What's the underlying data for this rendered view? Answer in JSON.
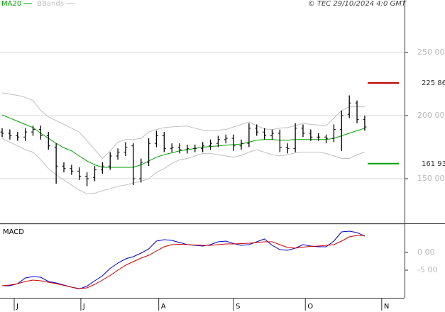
{
  "chart_data": [
    {
      "type": "ohlc",
      "source": "© TEC 29/10/2024 4:0 GMT",
      "xlim": [
        -0.28,
        52.16
      ],
      "ylim": [
        114.6,
        291.6
      ],
      "yticks": [
        {
          "value": 150,
          "label": "150 00"
        },
        {
          "value": 200,
          "label": "200 00"
        },
        {
          "value": 250,
          "label": "250 00"
        }
      ],
      "grid": true,
      "bar_color": "#000000",
      "ohlc": {
        "open": [
          187,
          186,
          184,
          183,
          187,
          189,
          184,
          175,
          160,
          158,
          156,
          152,
          151,
          157,
          160,
          168,
          171,
          176,
          150,
          163,
          178,
          184,
          174,
          175,
          173,
          174,
          174,
          176,
          178,
          181,
          182,
          176,
          178,
          190,
          187,
          184,
          186,
          175,
          174,
          190,
          186,
          183,
          183,
          182,
          189,
          201,
          210,
          197
        ],
        "high": [
          190,
          189,
          187,
          190,
          192,
          192,
          187,
          178,
          163,
          161,
          159,
          155,
          160,
          163,
          171,
          174,
          179,
          178,
          166,
          182,
          188,
          187,
          178,
          178,
          177,
          177,
          179,
          181,
          184,
          185,
          185,
          181,
          194,
          193,
          190,
          189,
          189,
          178,
          194,
          193,
          189,
          186,
          185,
          193,
          204,
          216,
          212,
          200
        ],
        "low": [
          183,
          181,
          180,
          180,
          184,
          181,
          173,
          146,
          155,
          153,
          149,
          144,
          148,
          154,
          157,
          165,
          168,
          145,
          147,
          160,
          175,
          171,
          171,
          170,
          170,
          171,
          171,
          173,
          175,
          178,
          172,
          173,
          175,
          184,
          181,
          181,
          171,
          170,
          171,
          183,
          180,
          180,
          178,
          179,
          172,
          198,
          194,
          188
        ],
        "close": [
          186,
          184,
          183,
          187,
          189,
          184,
          176,
          160,
          158,
          156,
          152,
          150,
          157,
          160,
          168,
          171,
          175,
          150,
          163,
          178,
          184,
          174,
          175,
          173,
          174,
          174,
          176,
          178,
          181,
          182,
          176,
          178,
          190,
          187,
          184,
          186,
          175,
          174,
          190,
          186,
          183,
          183,
          182,
          189,
          200,
          210,
          197,
          191
        ]
      },
      "series": [
        {
          "name": "MA20",
          "color": "#00a000",
          "values": [
            200.5,
            198,
            195.5,
            193,
            190.5,
            186,
            182,
            178,
            174.5,
            172,
            168,
            164,
            161,
            159,
            159,
            159,
            159,
            159,
            161,
            164,
            167,
            169,
            170.5,
            172,
            173,
            174,
            175,
            175.5,
            176,
            176.5,
            177,
            177.5,
            179,
            180.5,
            181,
            181,
            180.5,
            180.5,
            181,
            181,
            181,
            181,
            181,
            182,
            184,
            186,
            188,
            190
          ]
        },
        {
          "name": "BBands",
          "color": "#c0c0c0",
          "upper": [
            218,
            217,
            216,
            214.5,
            212,
            204,
            199,
            196,
            193,
            190,
            187,
            180,
            173,
            166,
            172,
            179,
            181,
            181,
            182,
            187,
            189,
            190.5,
            191,
            191.5,
            191.7,
            190,
            188.5,
            188,
            188.5,
            189,
            191,
            193,
            195,
            192,
            189.5,
            189,
            190,
            190.5,
            192,
            194,
            193,
            192.5,
            192,
            198,
            204,
            207,
            207,
            207
          ],
          "lower": [
            182,
            179,
            176,
            173,
            171,
            165,
            158,
            153,
            149,
            145,
            141,
            138,
            138.5,
            140.5,
            142,
            144,
            145,
            146.5,
            148,
            150,
            155,
            158,
            162,
            165,
            166,
            168,
            170,
            170,
            169,
            168,
            167,
            168.5,
            171,
            173,
            171,
            169,
            168,
            169,
            170.5,
            171,
            171,
            171,
            170,
            168,
            166,
            166,
            169,
            171
          ]
        }
      ],
      "levels": [
        {
          "value": 225.86,
          "label": "225 86",
          "color": "#c00000"
        },
        {
          "value": 161.93,
          "label": "161 93",
          "color": "#00a000"
        }
      ]
    },
    {
      "type": "line",
      "title": "MACD",
      "xlim": [
        -0.28,
        52.16
      ],
      "ylim": [
        -12.8,
        7.6
      ],
      "yticks": [
        {
          "value": 0,
          "label": "0 00"
        },
        {
          "value": -5,
          "label": "-5 00"
        }
      ],
      "xticks": [
        {
          "value": 1.56,
          "label": "J"
        },
        {
          "value": 10.2,
          "label": "J"
        },
        {
          "value": 20.3,
          "label": "A"
        },
        {
          "value": 30.0,
          "label": "S"
        },
        {
          "value": 39.3,
          "label": "O"
        },
        {
          "value": 49.2,
          "label": "N"
        }
      ],
      "series": [
        {
          "color": "#0000cc",
          "values": [
            -9.4,
            -9.4,
            -8.8,
            -7.2,
            -6.8,
            -7.0,
            -8.2,
            -8.6,
            -9.2,
            -9.8,
            -10.3,
            -9.5,
            -8.0,
            -6.6,
            -4.5,
            -3.0,
            -1.8,
            -1.2,
            -0.2,
            1.0,
            3.2,
            3.6,
            3.4,
            2.8,
            2.2,
            2.0,
            1.8,
            2.2,
            3.0,
            3.2,
            2.5,
            2.0,
            2.2,
            3.0,
            3.8,
            2.0,
            0.8,
            0.6,
            1.2,
            2.2,
            1.8,
            1.6,
            1.6,
            3.2,
            5.8,
            6.0,
            5.6,
            4.6
          ]
        },
        {
          "color": "#cc0000",
          "values": [
            -9.4,
            -9.2,
            -8.8,
            -8.2,
            -7.8,
            -8.0,
            -8.4,
            -8.8,
            -9.3,
            -9.8,
            -10.2,
            -10.0,
            -9.0,
            -7.8,
            -6.5,
            -5.0,
            -3.6,
            -2.6,
            -1.6,
            -0.8,
            0.4,
            1.6,
            2.2,
            2.3,
            2.2,
            2.1,
            2.0,
            2.0,
            2.2,
            2.4,
            2.4,
            2.5,
            2.6,
            2.8,
            3.0,
            3.0,
            2.2,
            1.4,
            1.2,
            1.5,
            1.7,
            1.8,
            2.0,
            2.2,
            3.2,
            4.4,
            4.8,
            4.8
          ]
        }
      ]
    }
  ]
}
